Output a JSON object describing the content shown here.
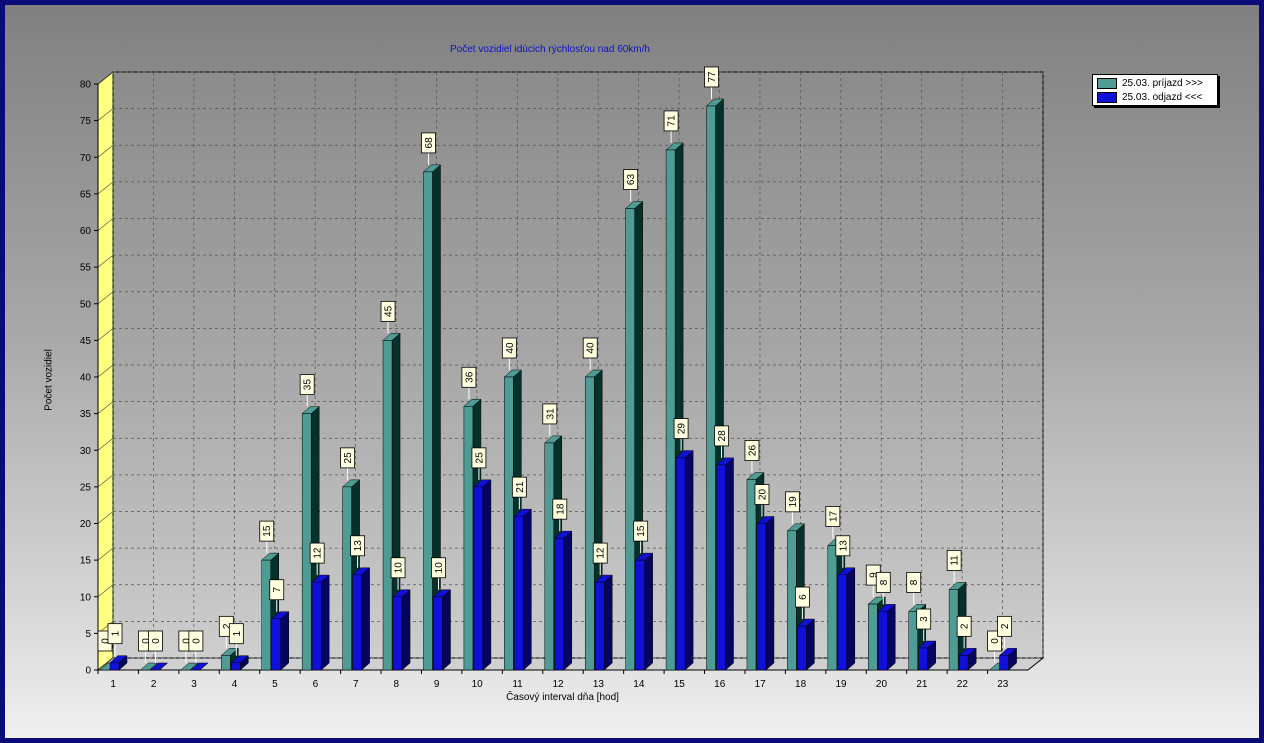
{
  "chart_data": {
    "type": "bar",
    "title": "Počet vozidiel idúcich rýchlosťou nad 60km/h",
    "xlabel": "Časový interval dňa [hod]",
    "ylabel": "Počet vozidiel",
    "ylim": [
      0,
      80
    ],
    "yticks": [
      0,
      5,
      10,
      15,
      20,
      25,
      30,
      35,
      40,
      45,
      50,
      55,
      60,
      65,
      70,
      75,
      80
    ],
    "grid": true,
    "legend_position": "top-right",
    "categories": [
      "1",
      "2",
      "3",
      "4",
      "5",
      "6",
      "7",
      "8",
      "9",
      "10",
      "11",
      "12",
      "13",
      "14",
      "15",
      "16",
      "17",
      "18",
      "19",
      "20",
      "21",
      "22",
      "23"
    ],
    "series": [
      {
        "name": "25.03.  príjazd >>>",
        "color": "#4f9c94",
        "dark": "#06302a",
        "values": [
          0,
          0,
          0,
          2,
          15,
          35,
          25,
          45,
          68,
          36,
          40,
          31,
          40,
          63,
          71,
          77,
          26,
          19,
          17,
          9,
          8,
          11,
          0
        ],
        "labels": [
          "0",
          "0",
          "0",
          "2",
          "15",
          "35",
          "25",
          "45",
          "68",
          "36",
          "40",
          "31",
          "40",
          "63",
          "71",
          "77",
          "26",
          "19",
          "17",
          "9",
          "8",
          "11",
          "0"
        ]
      },
      {
        "name": "25.03.  odjazd <<<",
        "color": "#1010d8",
        "dark": "#050560",
        "values": [
          1,
          0,
          0,
          1,
          7,
          12,
          13,
          10,
          10,
          25,
          21,
          18,
          12,
          15,
          29,
          28,
          20,
          6,
          13,
          8,
          3,
          2,
          2
        ],
        "labels": [
          "1",
          "0",
          "0",
          "1",
          "7",
          "12",
          "13",
          "10",
          "10",
          "25",
          "21",
          "18",
          "12",
          "15",
          "29",
          "28",
          "20",
          "6",
          "13",
          "8",
          "3",
          "2",
          "2"
        ]
      }
    ]
  }
}
